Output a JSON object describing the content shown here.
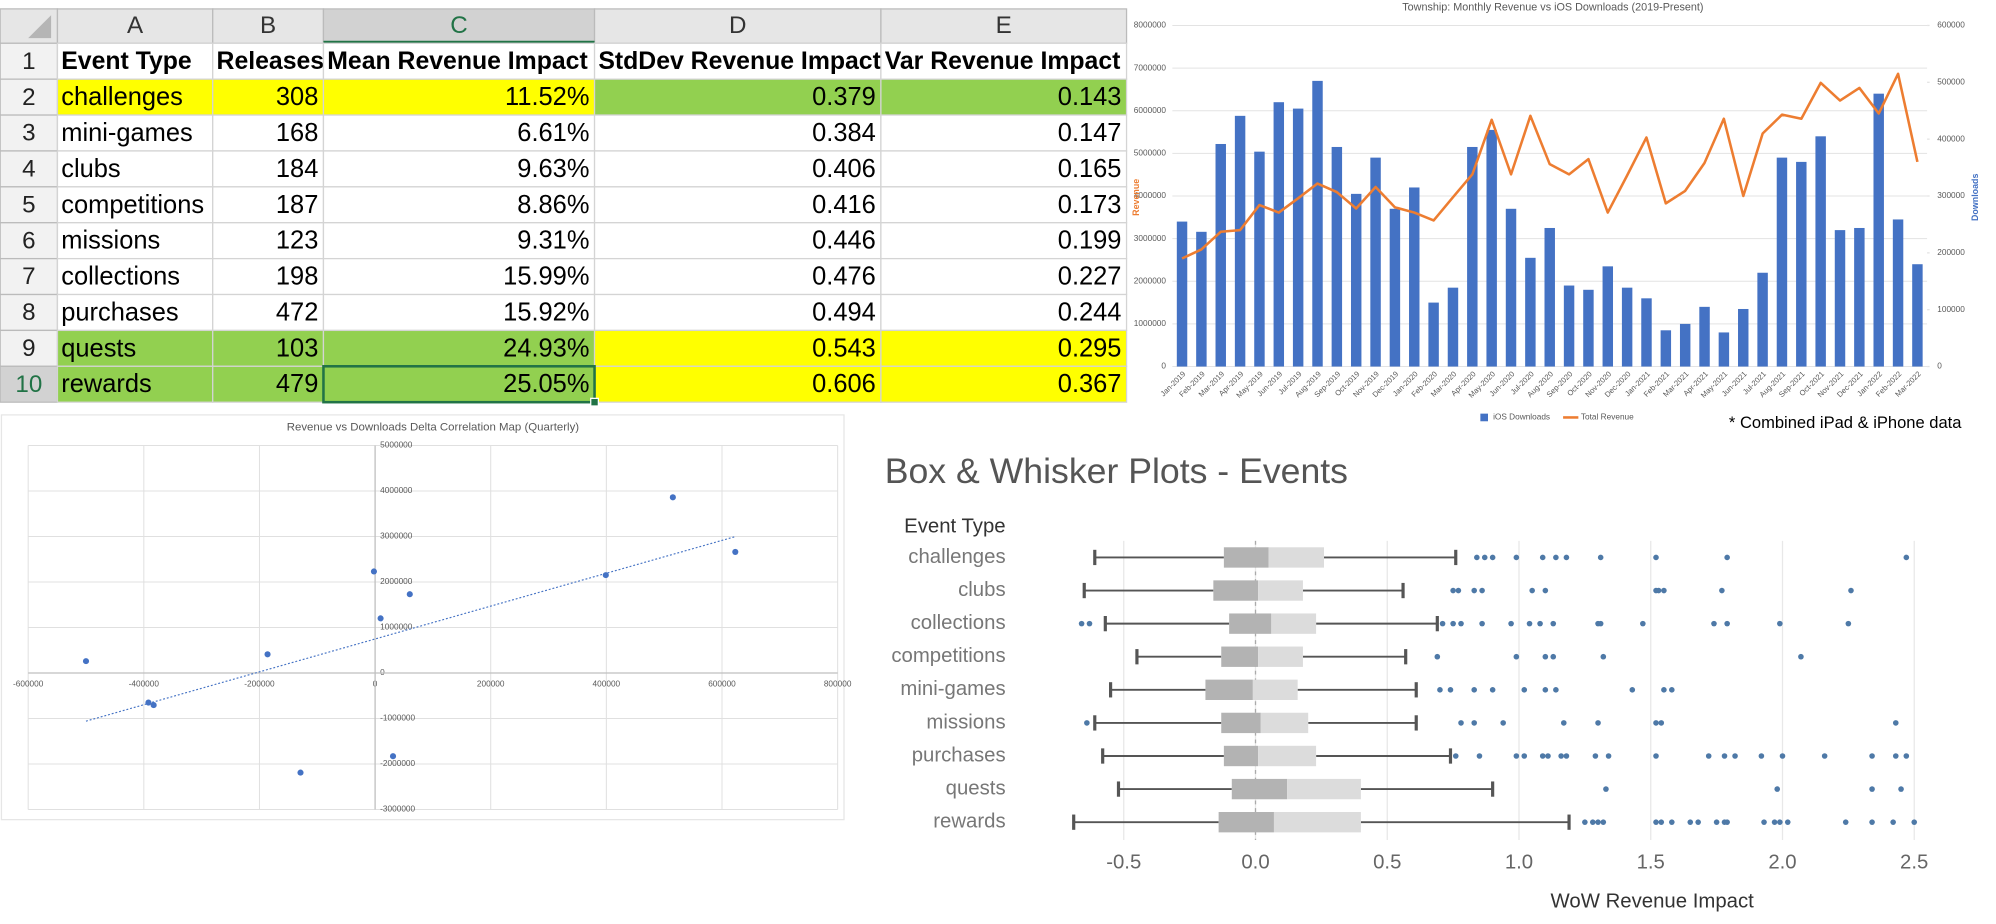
{
  "table": {
    "columns": [
      "A",
      "B",
      "C",
      "D",
      "E"
    ],
    "row_numbers": [
      1,
      2,
      3,
      4,
      5,
      6,
      7,
      8,
      9,
      10
    ],
    "rows": [
      [
        "Event Type",
        "Releases",
        "Mean Revenue Impact",
        "StdDev Revenue Impact",
        "Var Revenue Impact"
      ],
      [
        "challenges",
        308,
        "11.52%",
        0.379,
        0.143
      ],
      [
        "mini-games",
        168,
        "6.61%",
        0.384,
        0.147
      ],
      [
        "clubs",
        184,
        "9.63%",
        0.406,
        0.165
      ],
      [
        "competitions",
        187,
        "8.86%",
        0.416,
        0.173
      ],
      [
        "missions",
        123,
        "9.31%",
        0.446,
        0.199
      ],
      [
        "collections",
        198,
        "15.99%",
        0.476,
        0.227
      ],
      [
        "purchases",
        472,
        "15.92%",
        0.494,
        0.244
      ],
      [
        "quests",
        103,
        "24.93%",
        0.543,
        0.295
      ],
      [
        "rewards",
        479,
        "25.05%",
        0.606,
        0.367
      ]
    ],
    "fills": [
      [
        null,
        null,
        null,
        null,
        null
      ],
      [
        "#ffff00",
        "#ffff00",
        "#ffff00",
        "#92d050",
        "#92d050"
      ],
      [
        null,
        null,
        null,
        null,
        null
      ],
      [
        null,
        null,
        null,
        null,
        null
      ],
      [
        null,
        null,
        null,
        null,
        null
      ],
      [
        null,
        null,
        null,
        null,
        null
      ],
      [
        null,
        null,
        null,
        null,
        null
      ],
      [
        null,
        null,
        null,
        null,
        null
      ],
      [
        "#92d050",
        "#92d050",
        "#92d050",
        "#ffff00",
        "#ffff00"
      ],
      [
        "#92d050",
        "#92d050",
        "#92d050",
        "#ffff00",
        "#ffff00"
      ]
    ]
  },
  "chart_data": [
    {
      "type": "bar",
      "title": "Township: Monthly Revenue vs iOS Downloads (2019-Present)",
      "ylabel": "Revenue",
      "y2label": "Downloads",
      "annotation": "* Combined iPad & iPhone data",
      "categories": [
        "Jan-2019",
        "Feb-2019",
        "Mar-2019",
        "Apr-2019",
        "May-2019",
        "Jun-2019",
        "Jul-2019",
        "Aug-2019",
        "Sep-2019",
        "Oct-2019",
        "Nov-2019",
        "Dec-2019",
        "Jan-2020",
        "Feb-2020",
        "Mar-2020",
        "Apr-2020",
        "May-2020",
        "Jun-2020",
        "Jul-2020",
        "Aug-2020",
        "Sep-2020",
        "Oct-2020",
        "Nov-2020",
        "Dec-2020",
        "Jan-2021",
        "Feb-2021",
        "Mar-2021",
        "Apr-2021",
        "May-2021",
        "Jun-2021",
        "Jul-2021",
        "Aug-2021",
        "Sep-2021",
        "Oct-2021",
        "Nov-2021",
        "Dec-2021",
        "Jan-2022",
        "Feb-2022",
        "Mar-2022"
      ],
      "series": [
        {
          "name": "iOS Downloads",
          "type": "bar",
          "color": "#4472c4",
          "values": [
            3400000,
            3160000,
            5220000,
            5880000,
            5040000,
            6200000,
            6050000,
            6700000,
            5150000,
            4050000,
            4900000,
            3700000,
            4200000,
            1500000,
            1850000,
            5150000,
            5550000,
            3700000,
            2550000,
            3250000,
            1900000,
            1800000,
            2350000,
            1850000,
            1600000,
            850000,
            1000000,
            1400000,
            800000,
            1350000,
            2200000,
            4900000,
            4800000,
            5400000,
            3200000,
            3250000,
            6400000,
            3450000,
            2400000
          ]
        },
        {
          "name": "Total Revenue",
          "type": "line",
          "color": "#ed7d31",
          "axis": "y2",
          "values": [
            190000,
            206000,
            237000,
            240000,
            284000,
            271000,
            296000,
            322000,
            307000,
            278000,
            316000,
            280000,
            271000,
            257000,
            298000,
            338000,
            434000,
            338000,
            441000,
            356000,
            338000,
            365000,
            271000,
            336000,
            403000,
            287000,
            309000,
            358000,
            436000,
            300000,
            410000,
            443000,
            436000,
            499000,
            468000,
            490000,
            445000,
            515000,
            360000
          ]
        }
      ],
      "ylim": [
        0,
        8000000
      ],
      "yticks": [
        0,
        1000000,
        2000000,
        3000000,
        4000000,
        5000000,
        6000000,
        7000000,
        8000000
      ],
      "y2lim": [
        0,
        600000
      ],
      "y2ticks": [
        0,
        100000,
        200000,
        300000,
        400000,
        500000,
        600000
      ],
      "grid": true,
      "legend": "bottom"
    },
    {
      "type": "scatter",
      "title": "Revenue vs Downloads Delta Correlation Map (Quarterly)",
      "x": [
        -500000,
        -392000,
        -383000,
        -186000,
        -129000,
        -2000,
        9500,
        31000,
        60000,
        399000,
        515000,
        623000
      ],
      "values": [
        260000,
        -650000,
        -706000,
        410000,
        -2190000,
        2230000,
        1200000,
        -1830000,
        1730000,
        2150000,
        3860000,
        2660000
      ],
      "color": "#4472c4",
      "trendline": true,
      "xlim": [
        -600000,
        800000
      ],
      "xticks": [
        -600000,
        -400000,
        -200000,
        0,
        200000,
        400000,
        600000,
        800000
      ],
      "ylim": [
        -3000000,
        5000000
      ],
      "yticks": [
        -3000000,
        -2000000,
        -1000000,
        0,
        1000000,
        2000000,
        3000000,
        4000000,
        5000000
      ],
      "grid": true
    },
    {
      "type": "box",
      "title": "Box & Whisker Plots - Events",
      "ylabel": "Event Type",
      "xlabel": "WoW Revenue Impact",
      "categories": [
        "challenges",
        "clubs",
        "collections",
        "competitions",
        "mini-games",
        "missions",
        "purchases",
        "quests",
        "rewards"
      ],
      "low": [
        -0.61,
        -0.65,
        -0.57,
        -0.45,
        -0.55,
        -0.61,
        -0.58,
        -0.52,
        -0.69
      ],
      "q1": [
        -0.12,
        -0.16,
        -0.1,
        -0.13,
        -0.19,
        -0.13,
        -0.12,
        -0.09,
        -0.14
      ],
      "median": [
        0.05,
        0.01,
        0.06,
        0.01,
        -0.01,
        0.02,
        0.01,
        0.12,
        0.07
      ],
      "q3": [
        0.26,
        0.18,
        0.23,
        0.18,
        0.16,
        0.2,
        0.23,
        0.4,
        0.4
      ],
      "high": [
        0.76,
        0.56,
        0.69,
        0.57,
        0.61,
        0.61,
        0.74,
        0.9,
        1.19
      ],
      "outliers": [
        [
          0.84,
          0.87,
          0.9,
          0.99,
          1.09,
          1.14,
          1.18,
          1.31,
          1.52,
          1.79,
          2.47
        ],
        [
          0.75,
          0.77,
          0.83,
          0.86,
          1.05,
          1.1,
          1.52,
          1.53,
          1.55,
          1.77,
          2.26
        ],
        [
          -0.66,
          -0.63,
          0.71,
          0.75,
          0.78,
          0.86,
          0.97,
          1.04,
          1.08,
          1.13,
          1.3,
          1.31,
          1.47,
          1.74,
          1.79,
          1.99,
          2.25
        ],
        [
          0.69,
          0.99,
          1.1,
          1.13,
          1.32,
          2.07
        ],
        [
          0.7,
          0.74,
          0.83,
          0.9,
          1.02,
          1.1,
          1.14,
          1.43,
          1.55,
          1.58
        ],
        [
          -0.64,
          0.78,
          0.83,
          0.94,
          1.17,
          1.3,
          1.52,
          1.54,
          2.43
        ],
        [
          0.76,
          0.85,
          0.99,
          1.02,
          1.09,
          1.11,
          1.16,
          1.18,
          1.29,
          1.34,
          1.52,
          1.72,
          1.78,
          1.82,
          1.92,
          2.0,
          2.16,
          2.34,
          2.43,
          2.47
        ],
        [
          1.33,
          1.98,
          2.34,
          2.45
        ],
        [
          1.25,
          1.28,
          1.3,
          1.32,
          1.52,
          1.54,
          1.58,
          1.65,
          1.68,
          1.75,
          1.78,
          1.79,
          1.93,
          1.97,
          1.99,
          2.02,
          2.24,
          2.34,
          2.42,
          2.5
        ]
      ],
      "color": "#4e79a7",
      "reference_line": 0,
      "xlim": [
        -0.9,
        2.8
      ],
      "xticks": [
        -0.5,
        {
          "value": 0,
          "label": "0.0"
        },
        0.5,
        {
          "value": 1,
          "label": "1.0"
        },
        1.5,
        {
          "value": 2,
          "label": "2.0"
        },
        2.5
      ],
      "grid": true
    }
  ]
}
